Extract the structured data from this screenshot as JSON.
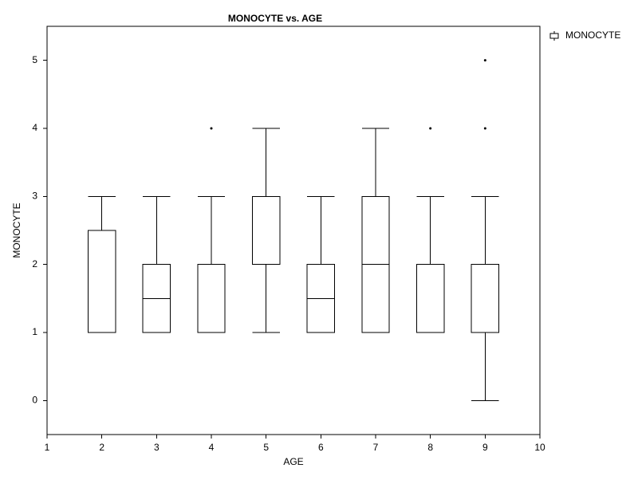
{
  "chart_data": {
    "type": "box",
    "title": "MONOCYTE vs. AGE",
    "x_label": "AGE",
    "y_label": "MONOCYTE",
    "xlim": [
      1,
      10
    ],
    "xticks": [
      1,
      2,
      3,
      4,
      5,
      6,
      7,
      8,
      9,
      10
    ],
    "ylim": [
      -0.5,
      5.5
    ],
    "yticks": [
      0,
      1,
      2,
      3,
      4,
      5
    ],
    "legend": "top-right",
    "grid": false,
    "series": [
      {
        "name": "MONOCYTE",
        "color": "#000000",
        "boxes": [
          {
            "x": 2,
            "min": 1,
            "q1": 1,
            "median": 1,
            "q3": 2.5,
            "max": 3,
            "outliers": []
          },
          {
            "x": 3,
            "min": 1,
            "q1": 1,
            "median": 1.5,
            "q3": 2,
            "max": 3,
            "outliers": []
          },
          {
            "x": 4,
            "min": 1,
            "q1": 1,
            "median": 1,
            "q3": 2,
            "max": 3,
            "outliers": [
              4
            ]
          },
          {
            "x": 5,
            "min": 1,
            "q1": 2,
            "median": 2,
            "q3": 3,
            "max": 4,
            "outliers": []
          },
          {
            "x": 6,
            "min": 1,
            "q1": 1,
            "median": 1.5,
            "q3": 2,
            "max": 3,
            "outliers": []
          },
          {
            "x": 7,
            "min": 1,
            "q1": 1,
            "median": 2,
            "q3": 3,
            "max": 4,
            "outliers": []
          },
          {
            "x": 8,
            "min": 1,
            "q1": 1,
            "median": 1,
            "q3": 2,
            "max": 3,
            "outliers": [
              4
            ]
          },
          {
            "x": 9,
            "min": 0,
            "q1": 1,
            "median": 1,
            "q3": 2,
            "max": 3,
            "outliers": [
              4,
              5
            ]
          }
        ]
      }
    ]
  }
}
